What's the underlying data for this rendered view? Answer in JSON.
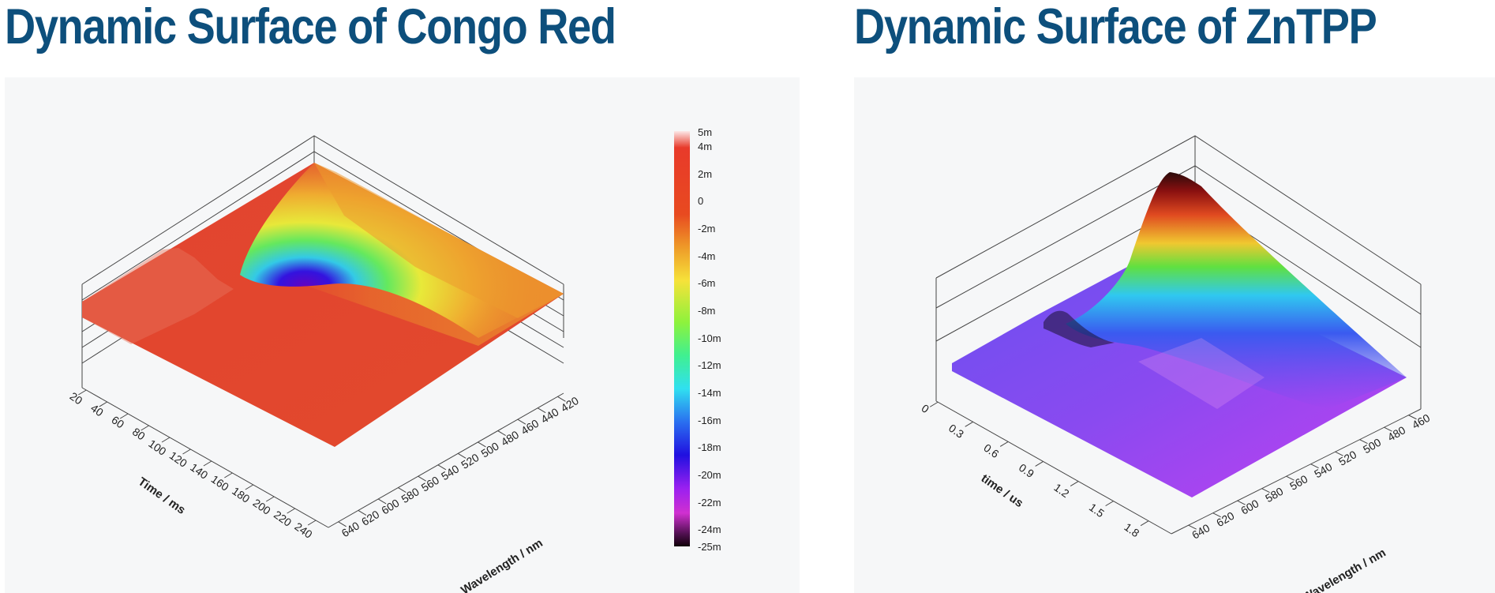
{
  "titles": {
    "left": "Dynamic Surface of Congo Red",
    "right": "Dynamic Surface of ZnTPP"
  },
  "colors": {
    "title": "#0d4f7c",
    "panel_bg": "#f6f7f8"
  },
  "chart_data": [
    {
      "type": "surface3d",
      "title": "Dynamic Surface of Congo Red",
      "x_axis": {
        "label": "Time / ms",
        "ticks": [
          "20",
          "40",
          "60",
          "80",
          "100",
          "120",
          "140",
          "160",
          "180",
          "200",
          "220",
          "240"
        ]
      },
      "y_axis": {
        "label": "Wavelength / nm",
        "ticks": [
          "420",
          "440",
          "460",
          "480",
          "500",
          "520",
          "540",
          "560",
          "580",
          "600",
          "620",
          "640"
        ]
      },
      "colorbar": {
        "ticks": [
          "5m",
          "4m",
          "2m",
          "0",
          "-2m",
          "-4m",
          "-6m",
          "-8m",
          "-10m",
          "-12m",
          "-14m",
          "-16m",
          "-18m",
          "-20m",
          "-22m",
          "-24m",
          "-25m"
        ],
        "range": [
          -25,
          5
        ],
        "unit": "m"
      },
      "features": [
        {
          "description": "deep bleach minimum",
          "time_ms": 20,
          "wavelength_nm": 500,
          "value_m": -25
        },
        {
          "description": "positive plateau",
          "time_ms": 20,
          "wavelength_nm": 640,
          "value_m": 4
        }
      ]
    },
    {
      "type": "surface3d",
      "title": "Dynamic Surface of ZnTPP",
      "x_axis": {
        "label": "time / us",
        "ticks": [
          "0",
          "0.3",
          "0.6",
          "0.9",
          "1.2",
          "1.5",
          "1.8"
        ]
      },
      "y_axis": {
        "label": "Wavelength / nm",
        "ticks": [
          "460",
          "480",
          "500",
          "520",
          "540",
          "560",
          "580",
          "600",
          "620",
          "640"
        ]
      },
      "features": [
        {
          "description": "main peak",
          "time_us": 0,
          "wavelength_nm": 470
        }
      ]
    }
  ]
}
